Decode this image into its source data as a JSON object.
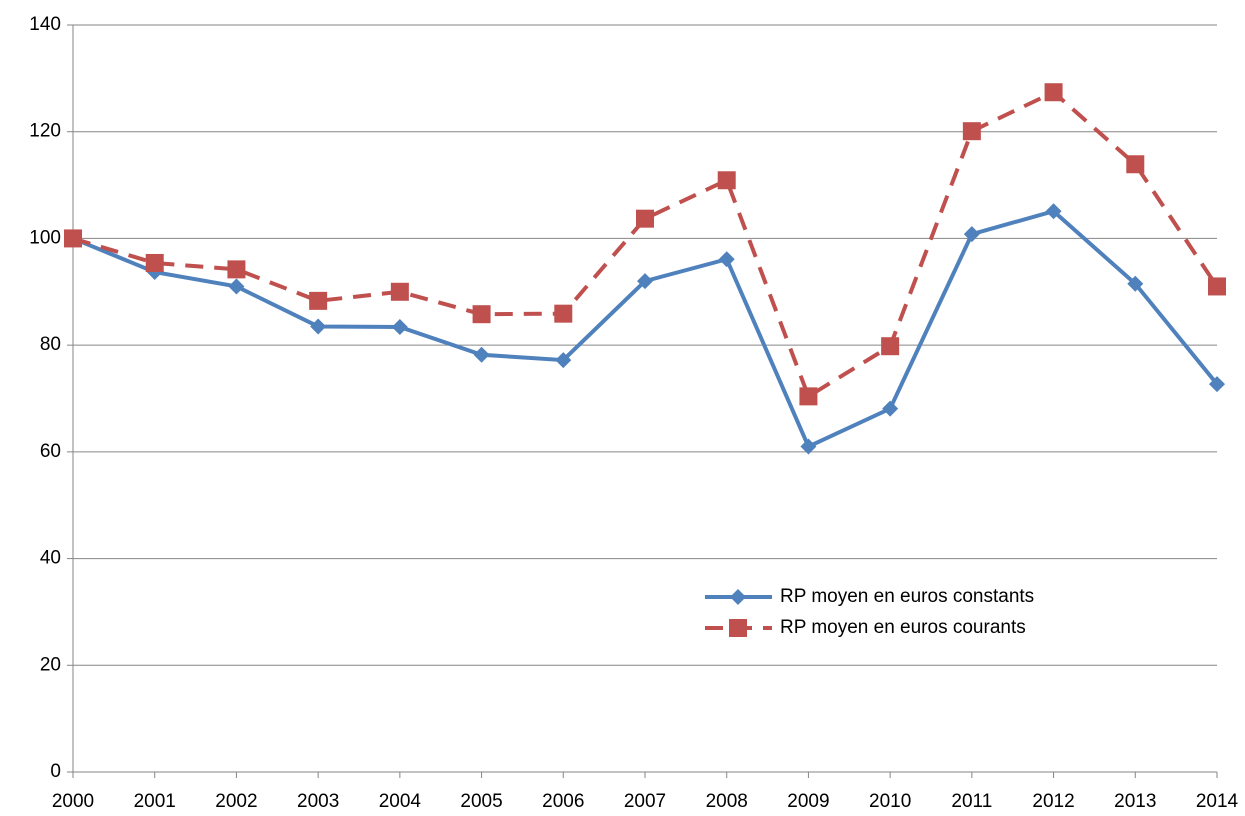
{
  "chart_data": {
    "type": "line",
    "categories": [
      "2000",
      "2001",
      "2002",
      "2003",
      "2004",
      "2005",
      "2006",
      "2007",
      "2008",
      "2009",
      "2010",
      "2011",
      "2012",
      "2013",
      "2014"
    ],
    "series": [
      {
        "name": "RP moyen en euros constants",
        "color": "#4f81bd",
        "dash": "solid",
        "marker": "diamond",
        "values": [
          100,
          93.7,
          91,
          83.5,
          83.4,
          78.2,
          77.2,
          92,
          96.1,
          61,
          68.1,
          100.8,
          105.1,
          91.5,
          72.7
        ]
      },
      {
        "name": "RP moyen en euros courants",
        "color": "#c0504d",
        "dash": "dashed",
        "marker": "square",
        "values": [
          100,
          95.4,
          94.2,
          88.3,
          90,
          85.8,
          85.9,
          103.7,
          110.9,
          70.4,
          79.8,
          120.1,
          127.4,
          113.9,
          91
        ]
      }
    ],
    "ylim": [
      0,
      140
    ],
    "yticks": [
      0,
      20,
      40,
      60,
      80,
      100,
      120,
      140
    ],
    "grid": true
  }
}
